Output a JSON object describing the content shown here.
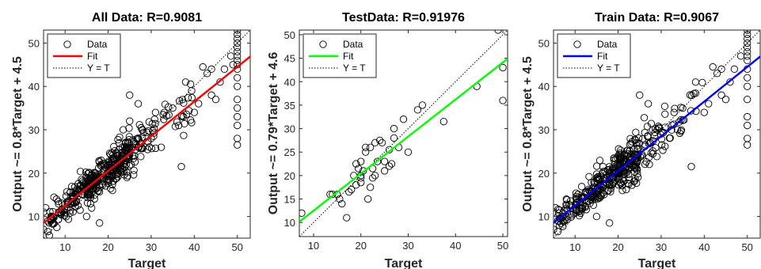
{
  "chart_data": [
    {
      "type": "scatter",
      "title": "All Data: R=0.9081",
      "xlabel": "Target",
      "ylabel": "Output ~= 0.8*Target + 4.5",
      "xlim": [
        5,
        53
      ],
      "ylim": [
        5,
        53
      ],
      "xticks": [
        10,
        20,
        30,
        40,
        50
      ],
      "yticks": [
        10,
        20,
        30,
        40,
        50
      ],
      "fit": {
        "slope": 0.8,
        "intercept": 4.5,
        "color": "#ff0000"
      },
      "legend": {
        "position": "top-left",
        "entries": [
          "Data",
          "Fit",
          "Y = T"
        ]
      },
      "grid": false,
      "point_seed": 11,
      "point_count": 420,
      "points": [
        [
          50,
          53
        ],
        [
          50,
          52
        ],
        [
          50,
          51
        ],
        [
          50,
          50
        ],
        [
          50,
          49
        ],
        [
          50,
          48
        ],
        [
          50,
          47
        ],
        [
          50,
          46
        ],
        [
          50,
          45
        ],
        [
          50,
          44
        ],
        [
          50,
          42
        ],
        [
          50,
          40
        ],
        [
          50,
          37
        ],
        [
          50,
          35
        ],
        [
          50,
          33
        ],
        [
          50,
          31
        ],
        [
          50,
          28
        ],
        [
          50,
          26.5
        ],
        [
          48.5,
          47
        ],
        [
          49,
          45
        ],
        [
          47,
          44
        ],
        [
          46,
          41
        ],
        [
          44,
          44
        ],
        [
          42,
          44.5
        ],
        [
          43,
          43
        ],
        [
          44,
          38
        ],
        [
          45,
          37
        ],
        [
          41,
          36
        ],
        [
          40,
          34
        ],
        [
          38,
          41
        ],
        [
          37,
          21.5
        ],
        [
          35,
          35
        ],
        [
          33,
          34
        ],
        [
          31,
          34
        ],
        [
          28,
          30
        ],
        [
          27,
          36
        ],
        [
          30,
          28
        ],
        [
          25,
          38
        ],
        [
          22,
          24
        ],
        [
          27,
          26
        ],
        [
          5,
          7
        ],
        [
          6,
          6.5
        ],
        [
          7,
          10
        ],
        [
          5.5,
          12
        ],
        [
          6,
          9
        ],
        [
          8,
          14
        ],
        [
          9,
          11
        ],
        [
          5,
          11
        ],
        [
          23.5,
          30
        ],
        [
          25,
          32
        ],
        [
          21,
          16
        ],
        [
          15,
          10
        ],
        [
          18,
          8.5
        ]
      ],
      "cloud": [
        {
          "x0": 6,
          "x1": 11,
          "ySd": 2.6,
          "n": 40
        },
        {
          "x0": 10,
          "x1": 16,
          "ySd": 2.4,
          "n": 80
        },
        {
          "x0": 15,
          "x1": 21,
          "ySd": 3.0,
          "n": 110
        },
        {
          "x0": 20,
          "x1": 25,
          "ySd": 3.6,
          "n": 110
        },
        {
          "x0": 24,
          "x1": 31,
          "ySd": 3.6,
          "n": 50
        },
        {
          "x0": 30,
          "x1": 40,
          "ySd": 3.6,
          "n": 30
        }
      ]
    },
    {
      "type": "scatter",
      "title": "TestData: R=0.91976",
      "xlabel": "Target",
      "ylabel": "Output ~= 0.79*Target + 4.6",
      "xlim": [
        7,
        51
      ],
      "ylim": [
        7,
        51
      ],
      "xticks": [
        10,
        20,
        30,
        40,
        50
      ],
      "yticks": [
        10,
        15,
        20,
        25,
        30,
        35,
        40,
        45,
        50
      ],
      "fit": {
        "slope": 0.79,
        "intercept": 4.6,
        "color": "#00ff00"
      },
      "legend": {
        "position": "top-left",
        "entries": [
          "Data",
          "Fit",
          "Y = T"
        ]
      },
      "grid": false,
      "point_seed": 5,
      "point_count": 0,
      "points": [
        [
          49,
          51
        ],
        [
          50,
          43
        ],
        [
          50,
          36
        ],
        [
          44.5,
          39
        ],
        [
          37.5,
          31.5
        ],
        [
          33,
          35
        ],
        [
          32,
          34
        ],
        [
          30,
          25
        ],
        [
          28,
          26
        ],
        [
          26,
          25.5
        ],
        [
          24.5,
          27
        ],
        [
          24,
          27.5
        ],
        [
          23,
          27
        ],
        [
          22.5,
          21.5
        ],
        [
          23.5,
          23
        ],
        [
          27,
          30
        ],
        [
          21,
          26
        ],
        [
          20,
          23
        ],
        [
          20.5,
          21
        ],
        [
          19,
          22.5
        ],
        [
          19.5,
          21.5
        ],
        [
          20,
          19.5
        ],
        [
          18.5,
          20
        ],
        [
          17.5,
          16.5
        ],
        [
          18,
          17
        ],
        [
          19,
          18
        ],
        [
          20,
          18.5
        ],
        [
          16,
          14
        ],
        [
          15,
          16
        ],
        [
          14,
          16
        ],
        [
          15.5,
          15
        ],
        [
          13.5,
          16
        ],
        [
          17,
          11
        ],
        [
          7.5,
          12
        ],
        [
          22,
          17.5
        ],
        [
          21.5,
          15
        ],
        [
          23,
          20
        ],
        [
          25,
          23
        ],
        [
          22.5,
          19.5
        ],
        [
          26,
          22
        ],
        [
          25,
          21
        ],
        [
          26.5,
          22.5
        ],
        [
          29,
          32
        ],
        [
          27,
          28
        ],
        [
          21,
          25
        ],
        [
          22,
          26
        ],
        [
          20,
          20
        ]
      ],
      "cloud": []
    },
    {
      "type": "scatter",
      "title": "Train Data: R=0.9067",
      "xlabel": "Target",
      "ylabel": "Output ~= 0.8*Target + 4.5",
      "xlim": [
        5,
        53
      ],
      "ylim": [
        5,
        53
      ],
      "xticks": [
        10,
        20,
        30,
        40,
        50
      ],
      "yticks": [
        10,
        20,
        30,
        40,
        50
      ],
      "fit": {
        "slope": 0.8,
        "intercept": 4.5,
        "color": "#0000ff"
      },
      "legend": {
        "position": "top-left",
        "entries": [
          "Data",
          "Fit",
          "Y = T"
        ]
      },
      "grid": false,
      "point_seed": 23,
      "point_count": 380,
      "points": [
        [
          50,
          53
        ],
        [
          50,
          52
        ],
        [
          50,
          51
        ],
        [
          50,
          50
        ],
        [
          50,
          49
        ],
        [
          50,
          48
        ],
        [
          50,
          47
        ],
        [
          50,
          46
        ],
        [
          50,
          44
        ],
        [
          50,
          42
        ],
        [
          50,
          40
        ],
        [
          50,
          37
        ],
        [
          50,
          33
        ],
        [
          50,
          31
        ],
        [
          50,
          28
        ],
        [
          50,
          26.5
        ],
        [
          48.5,
          47
        ],
        [
          47,
          44
        ],
        [
          46,
          41
        ],
        [
          44,
          44
        ],
        [
          42,
          44.5
        ],
        [
          43,
          43
        ],
        [
          44,
          38
        ],
        [
          45,
          37
        ],
        [
          41,
          36
        ],
        [
          40,
          34
        ],
        [
          38,
          41
        ],
        [
          37,
          21.5
        ],
        [
          35,
          35
        ],
        [
          33,
          34
        ],
        [
          28,
          30
        ],
        [
          27,
          36
        ],
        [
          25,
          38
        ],
        [
          22,
          24
        ],
        [
          5,
          7
        ],
        [
          6,
          6.5
        ],
        [
          7,
          10
        ],
        [
          5.5,
          12
        ],
        [
          6,
          9
        ],
        [
          8,
          14
        ],
        [
          5,
          11
        ],
        [
          21,
          16
        ],
        [
          15,
          10
        ],
        [
          18,
          8.5
        ]
      ],
      "cloud": [
        {
          "x0": 6,
          "x1": 11,
          "ySd": 2.6,
          "n": 36
        },
        {
          "x0": 10,
          "x1": 16,
          "ySd": 2.4,
          "n": 72
        },
        {
          "x0": 15,
          "x1": 21,
          "ySd": 3.0,
          "n": 100
        },
        {
          "x0": 20,
          "x1": 25,
          "ySd": 3.6,
          "n": 100
        },
        {
          "x0": 24,
          "x1": 31,
          "ySd": 3.6,
          "n": 45
        },
        {
          "x0": 30,
          "x1": 40,
          "ySd": 3.6,
          "n": 27
        }
      ]
    }
  ]
}
